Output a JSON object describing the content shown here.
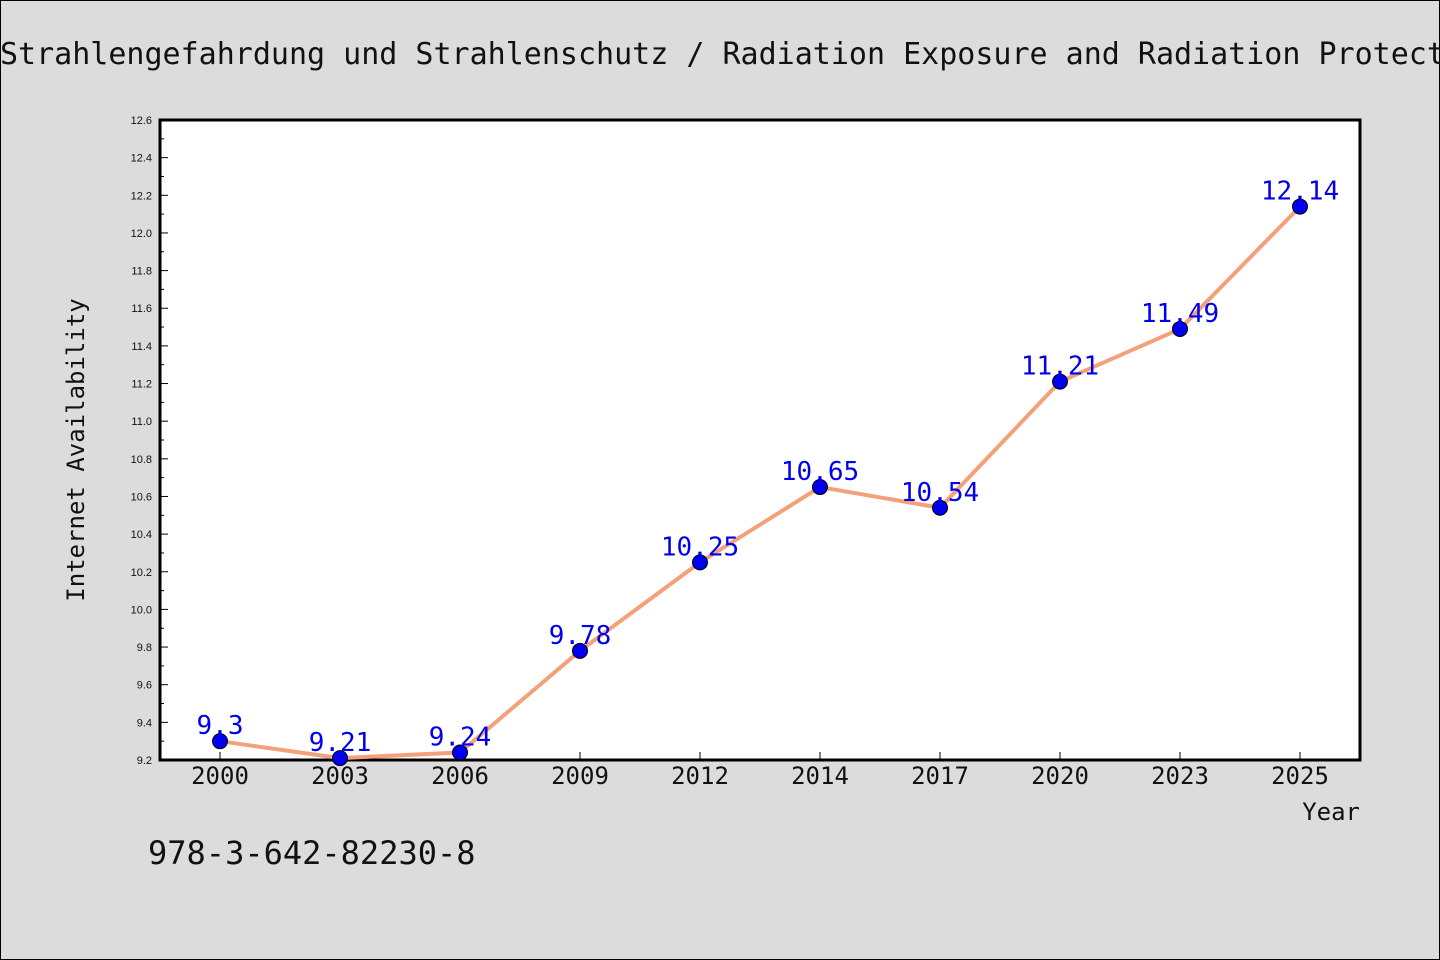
{
  "chart_data": {
    "type": "line",
    "title": "Strahlengefahrdung und Strahlenschutz / Radiation Exposure and Radiation Protect",
    "xlabel": "Year",
    "ylabel": "Internet Availability",
    "categories": [
      "2000",
      "2003",
      "2006",
      "2009",
      "2012",
      "2014",
      "2017",
      "2020",
      "2023",
      "2025"
    ],
    "series": [
      {
        "values": [
          9.3,
          9.21,
          9.24,
          9.78,
          10.25,
          10.65,
          10.54,
          11.21,
          11.49,
          12.14
        ]
      }
    ],
    "data_labels": [
      "9.3",
      "9.21",
      "9.24",
      "9.78",
      "10.25",
      "10.65",
      "10.54",
      "11.21",
      "11.49",
      "12.14"
    ],
    "ylim": [
      9.2,
      12.6
    ],
    "yticks": [
      "9.2",
      "9.4",
      "9.6",
      "9.8",
      "10.0",
      "10.2",
      "10.4",
      "10.6",
      "10.8",
      "11.0",
      "11.2",
      "11.4",
      "11.6",
      "11.8",
      "12.0",
      "12.2",
      "12.4",
      "12.6"
    ],
    "ytick_values": [
      9.2,
      9.4,
      9.6,
      9.8,
      10.0,
      10.2,
      10.4,
      10.6,
      10.8,
      11.0,
      11.2,
      11.4,
      11.6,
      11.8,
      12.0,
      12.2,
      12.4,
      12.6
    ],
    "grid": false,
    "legend": "none",
    "line_color": "#f4a07a",
    "marker_color": "#0000ee",
    "label_color": "#0000ee",
    "plot_background": "#ffffff",
    "figure_background": "#dcdcdc"
  },
  "footer_text": "978-3-642-82230-8"
}
